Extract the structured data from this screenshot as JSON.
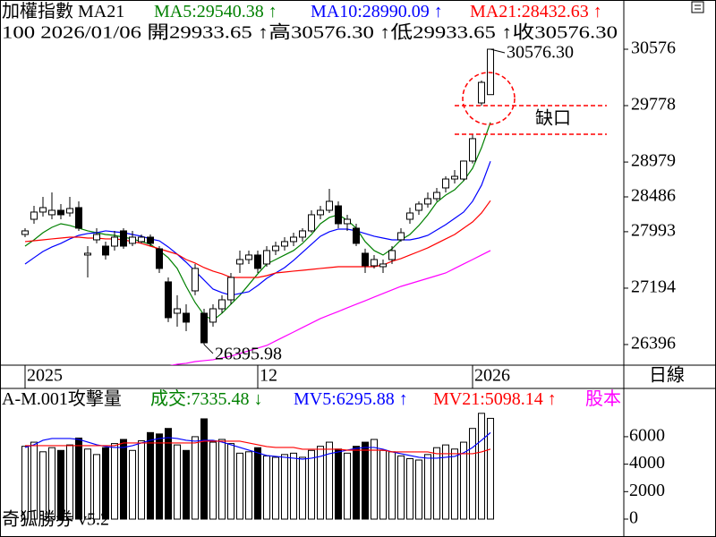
{
  "chart_data": [
    {
      "type": "candlestick",
      "title": "加權指數 MA21",
      "info": "100 2026/01/06 開29933.65 ↑高30576.30 ↑低29933.65 ↑收30576.30",
      "period_label": "日線",
      "categories": [
        "2025",
        null,
        null,
        null,
        null,
        null,
        null,
        null,
        null,
        null,
        null,
        null,
        null,
        null,
        null,
        null,
        null,
        null,
        null,
        null,
        null,
        null,
        null,
        null,
        null,
        null,
        "12",
        null,
        null,
        null,
        null,
        null,
        null,
        null,
        null,
        null,
        null,
        null,
        null,
        null,
        null,
        null,
        null,
        null,
        null,
        null,
        null,
        null,
        null,
        null,
        "2026",
        null,
        null
      ],
      "open": [
        27954,
        28169,
        28271,
        28233,
        28296,
        28258,
        28334,
        27663,
        27878,
        27789,
        27789,
        28005,
        27828,
        27853,
        27916,
        27751,
        27283,
        26839,
        26839,
        27156,
        26839,
        26713,
        26902,
        27029,
        27536,
        27599,
        27663,
        27536,
        27726,
        27789,
        27853,
        27916,
        28005,
        28233,
        28296,
        28359,
        28106,
        28043,
        27688,
        27511,
        27498,
        27599,
        27879,
        28169,
        28296,
        28385,
        28461,
        28613,
        28739,
        28739,
        28993,
        29816,
        29933.65
      ],
      "high": [
        28043,
        28359,
        28486,
        28549,
        28385,
        28486,
        28423,
        27789,
        28043,
        27853,
        28005,
        28043,
        28005,
        27954,
        27954,
        27789,
        27346,
        27093,
        26966,
        27536,
        26902,
        26966,
        27093,
        27409,
        27726,
        27726,
        27726,
        27789,
        27853,
        27916,
        27979,
        28043,
        28296,
        28359,
        28600,
        28423,
        28233,
        28106,
        27753,
        27663,
        27599,
        27789,
        28043,
        28334,
        28423,
        28549,
        28613,
        28777,
        28866,
        29000,
        29373,
        30133,
        30576.3
      ],
      "low": [
        27916,
        28106,
        28207,
        28169,
        28169,
        28207,
        28005,
        27346,
        27828,
        27599,
        27726,
        27751,
        27789,
        27828,
        27789,
        27409,
        26713,
        26649,
        26586,
        27093,
        26395.98,
        26649,
        26839,
        26966,
        27409,
        27536,
        27409,
        27498,
        27663,
        27726,
        27789,
        27853,
        27979,
        28169,
        28258,
        28043,
        28005,
        27789,
        27409,
        27473,
        27409,
        27536,
        27853,
        28106,
        28233,
        28334,
        28423,
        28549,
        28676,
        28713,
        28960,
        29778,
        29933.65
      ],
      "close": [
        28005,
        28271,
        28334,
        28296,
        28233,
        28321,
        28043,
        27688,
        27954,
        27663,
        27916,
        27789,
        27916,
        27916,
        27828,
        27473,
        26776,
        26902,
        26713,
        27473,
        26421,
        26902,
        27029,
        27346,
        27599,
        27663,
        27473,
        27726,
        27789,
        27853,
        27916,
        28005,
        28233,
        28296,
        28423,
        28106,
        28169,
        27828,
        27511,
        27599,
        27536,
        27726,
        27979,
        28258,
        28385,
        28461,
        28549,
        28739,
        28777,
        28993,
        29310,
        30107,
        30576.3
      ],
      "series": [
        {
          "legend_label": "MA5:29540.38 ↑",
          "color": "#008000",
          "values": [
            27789,
            27878,
            27979,
            28055,
            28106,
            28081,
            28043,
            28005,
            27979,
            27954,
            27941,
            27916,
            27891,
            27853,
            27815,
            27726,
            27625,
            27473,
            27219,
            26991,
            26814,
            26738,
            26839,
            26966,
            27093,
            27245,
            27397,
            27536,
            27599,
            27663,
            27726,
            27828,
            27954,
            28106,
            28195,
            28233,
            28157,
            28043,
            27853,
            27726,
            27663,
            27751,
            27878,
            27954,
            28081,
            28233,
            28410,
            28511,
            28587,
            28714,
            28891,
            29182,
            29540.38
          ]
        },
        {
          "legend_label": "MA10:28990.09 ↑",
          "color": "#0000ff",
          "values": [
            27536,
            27625,
            27713,
            27777,
            27828,
            27891,
            27941,
            27967,
            27979,
            28005,
            27992,
            27979,
            27954,
            27929,
            27891,
            27865,
            27777,
            27675,
            27561,
            27435,
            27308,
            27181,
            27131,
            27093,
            27118,
            27143,
            27232,
            27333,
            27409,
            27485,
            27587,
            27701,
            27815,
            27929,
            27992,
            28030,
            28030,
            28005,
            27967,
            27929,
            27903,
            27878,
            27878,
            27878,
            27903,
            27941,
            28017,
            28093,
            28182,
            28271,
            28423,
            28651,
            28990.09
          ]
        },
        {
          "legend_label": "MA21:28432.63 ↑",
          "color": "#ff0000",
          "values": [
            27853,
            27865,
            27878,
            27891,
            27903,
            27916,
            27916,
            27903,
            27903,
            27891,
            27891,
            27878,
            27853,
            27828,
            27789,
            27751,
            27713,
            27675,
            27599,
            27549,
            27485,
            27435,
            27397,
            27346,
            27346,
            27346,
            27346,
            27371,
            27409,
            27422,
            27435,
            27447,
            27460,
            27473,
            27485,
            27498,
            27498,
            27498,
            27498,
            27498,
            27523,
            27574,
            27612,
            27663,
            27713,
            27764,
            27828,
            27891,
            27954,
            28043,
            28131,
            28258,
            28432.63
          ]
        },
        {
          "color": "#ff00ff",
          "values": [
            null,
            null,
            null,
            null,
            null,
            null,
            null,
            null,
            null,
            null,
            null,
            null,
            null,
            null,
            null,
            26079,
            26092,
            26117,
            26130,
            26155,
            26168,
            26181,
            26206,
            26231,
            26269,
            26307,
            26345,
            26383,
            26447,
            26510,
            26573,
            26637,
            26700,
            26763,
            26814,
            26864,
            26915,
            26966,
            27016,
            27067,
            27118,
            27169,
            27219,
            27257,
            27295,
            27333,
            27371,
            27409,
            27473,
            27536,
            27599,
            27663,
            27726
          ]
        }
      ],
      "high_label": "30576.30",
      "low_label": "26395.98",
      "gap_label": "缺口",
      "gap_levels": [
        29778,
        29373
      ],
      "ylim": [
        26104,
        31273
      ],
      "yticks": [
        30576,
        29778,
        28979,
        28486,
        27993,
        27194,
        26396
      ]
    },
    {
      "type": "bar",
      "title": "A-M.001攻擊量",
      "volume_label": "成交:7335.48 ↓",
      "values": [
        5300,
        5600,
        4900,
        5200,
        5000,
        5400,
        5900,
        5100,
        4700,
        5200,
        5500,
        5800,
        5000,
        5700,
        6300,
        6200,
        6600,
        5400,
        5000,
        6000,
        7300,
        5600,
        5800,
        5500,
        4800,
        4900,
        5200,
        4600,
        4500,
        4700,
        4800,
        4500,
        5000,
        5300,
        5600,
        5100,
        4800,
        5300,
        5600,
        5800,
        5000,
        4900,
        4600,
        4400,
        4300,
        4700,
        5200,
        5400,
        5100,
        5600,
        6600,
        7700,
        7335.48
      ],
      "series": [
        {
          "legend_label": "MV5:6295.88 ↑",
          "color": "#0000ff",
          "values": [
            5216,
            5412,
            5738,
            5868,
            5868,
            5868,
            5803,
            5607,
            5412,
            5281,
            5216,
            5216,
            5346,
            5542,
            5738,
            5868,
            5933,
            5868,
            5738,
            5672,
            5738,
            5738,
            5607,
            5412,
            5216,
            5020,
            4825,
            4629,
            4564,
            4499,
            4434,
            4368,
            4434,
            4564,
            4760,
            4890,
            5020,
            5151,
            5216,
            5216,
            5086,
            4890,
            4760,
            4629,
            4499,
            4434,
            4434,
            4499,
            4564,
            4825,
            5216,
            5738,
            6295.88
          ]
        },
        {
          "legend_label": "MV21:5098.14 ↑",
          "color": "#ff0000",
          "values": [
            5346,
            5346,
            5346,
            5346,
            5346,
            5346,
            5346,
            5346,
            5346,
            5346,
            5346,
            5542,
            5542,
            5542,
            5542,
            5542,
            5542,
            5542,
            5542,
            5542,
            5672,
            5672,
            5672,
            5672,
            5672,
            5542,
            5412,
            5281,
            5216,
            5216,
            5216,
            5086,
            5086,
            5086,
            5086,
            5086,
            5020,
            5020,
            5020,
            5020,
            5020,
            4890,
            4890,
            4890,
            4890,
            4890,
            4760,
            4760,
            4760,
            4760,
            4760,
            4890,
            5098.14
          ]
        }
      ],
      "extra_label": "股本",
      "footer": "奇狐勝券 v5.2",
      "ylim": [
        0,
        7950
      ],
      "yticks": [
        0,
        2000,
        4000,
        6000
      ]
    }
  ]
}
